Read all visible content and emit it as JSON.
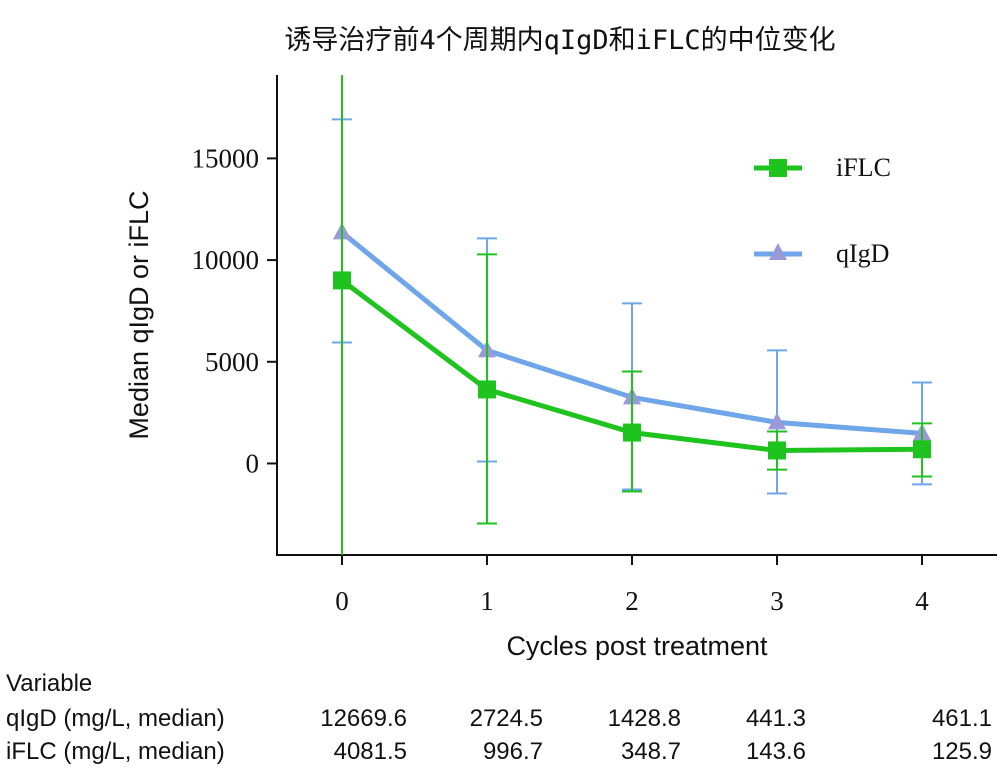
{
  "chart_data": {
    "type": "line",
    "title": "诱导治疗前4个周期内qIgD和iFLC的中位变化",
    "xlabel": "Cycles post treatment",
    "ylabel": "Median qIgD or iFLC",
    "x": [
      0,
      1,
      2,
      3,
      4
    ],
    "xticks": [
      "0",
      "1",
      "2",
      "3",
      "4"
    ],
    "yticks": [
      "0",
      "5000",
      "10000",
      "15000"
    ],
    "ytick_values": [
      0,
      5000,
      10000,
      15000
    ],
    "xlim": [
      -0.45,
      4.55
    ],
    "ylim": [
      -4500,
      19100
    ],
    "grid": false,
    "legend_placement": "top-right",
    "series": [
      {
        "name": "iFLC",
        "color": "#1ec31e",
        "marker": "square",
        "values": [
          9000,
          3640,
          1520,
          640,
          700
        ],
        "err_upper": [
          20000,
          10280,
          4520,
          1570,
          1970
        ],
        "err_lower": [
          -5000,
          -2950,
          -1380,
          -300,
          -640
        ]
      },
      {
        "name": "qIgD",
        "color": "#6fa6ea",
        "marker_color": "#9a9ad8",
        "marker": "triangle",
        "values": [
          11360,
          5560,
          3250,
          2020,
          1480
        ],
        "err_upper": [
          16920,
          11070,
          7870,
          5560,
          3980
        ],
        "err_lower": [
          5950,
          100,
          -1280,
          -1475,
          -1030
        ]
      }
    ]
  },
  "table": {
    "header": "Variable",
    "rows": [
      {
        "label": "qIgD (mg/L, median)",
        "values": [
          "12669.6",
          "2724.5",
          "1428.8",
          "441.3",
          "461.1"
        ]
      },
      {
        "label": "iFLC (mg/L, median)",
        "values": [
          "4081.5",
          "996.7",
          "348.7",
          "143.6",
          "125.9"
        ]
      }
    ]
  }
}
